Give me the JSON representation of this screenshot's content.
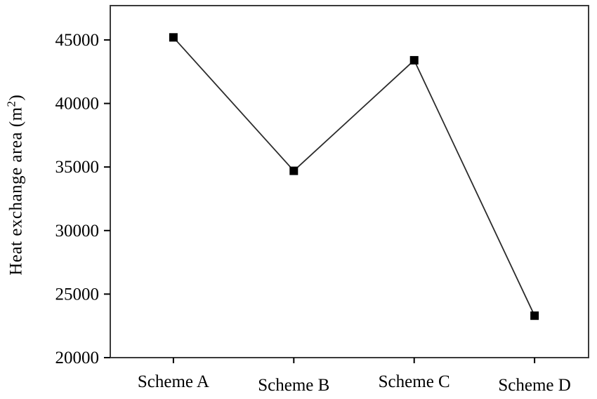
{
  "chart_data": {
    "type": "line",
    "title": "",
    "xlabel": "",
    "ylabel": "Heat exchange area (m²)",
    "ylabel_base": "Heat exchange area (m",
    "ylabel_sup": "2",
    "ylabel_close": ")",
    "categories": [
      "Scheme A",
      "Scheme B",
      "Scheme C",
      "Scheme D"
    ],
    "values": [
      45200,
      34700,
      43400,
      23300
    ],
    "ylim": [
      20000,
      47700
    ],
    "yticks": [
      20000,
      25000,
      30000,
      35000,
      40000,
      45000
    ],
    "grid": false,
    "legend": "none",
    "marker": "square",
    "marker_color": "#000000",
    "line_color": "#2b2b2b",
    "axis_color": "#3a3a3a"
  }
}
